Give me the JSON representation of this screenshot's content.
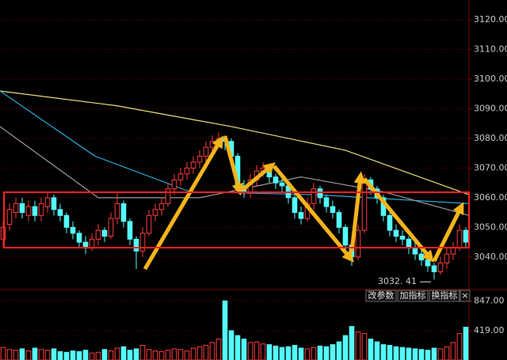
{
  "chart_data": {
    "type": "candlestick",
    "open": [
      3046,
      3051,
      3055,
      3058,
      3054,
      3057,
      3054,
      3057,
      3060,
      3056,
      3054,
      3050,
      3048,
      3045,
      3043,
      3046,
      3049,
      3047,
      3053,
      3058,
      3052,
      3046,
      3042,
      3048,
      3054,
      3056,
      3058,
      3063,
      3066,
      3068,
      3070,
      3072,
      3074,
      3077,
      3079,
      3080,
      3079,
      3074,
      3064,
      3062,
      3066,
      3069,
      3070,
      3067,
      3065,
      3064,
      3060,
      3055,
      3053,
      3058,
      3063,
      3060,
      3057,
      3055,
      3050,
      3044,
      3040,
      3049,
      3066,
      3063,
      3060,
      3054,
      3049,
      3047,
      3046,
      3043,
      3041,
      3039,
      3037,
      3035,
      3038,
      3041,
      3043,
      3049
    ],
    "close": [
      3050,
      3056,
      3058,
      3055,
      3057,
      3054,
      3058,
      3060,
      3056,
      3054,
      3050,
      3048,
      3045,
      3043,
      3046,
      3049,
      3047,
      3053,
      3058,
      3052,
      3046,
      3042,
      3048,
      3054,
      3056,
      3058,
      3063,
      3066,
      3068,
      3070,
      3072,
      3074,
      3077,
      3079,
      3080,
      3079,
      3074,
      3064,
      3062,
      3066,
      3069,
      3070,
      3067,
      3065,
      3064,
      3060,
      3055,
      3053,
      3058,
      3063,
      3060,
      3057,
      3055,
      3050,
      3044,
      3040,
      3049,
      3066,
      3063,
      3060,
      3054,
      3049,
      3047,
      3046,
      3043,
      3041,
      3039,
      3037,
      3035,
      3038,
      3041,
      3043,
      3049,
      3045
    ],
    "high": [
      3052,
      3058,
      3060,
      3060,
      3059,
      3059,
      3060,
      3062,
      3061,
      3058,
      3055,
      3052,
      3049,
      3047,
      3048,
      3051,
      3050,
      3055,
      3062,
      3059,
      3053,
      3047,
      3050,
      3056,
      3058,
      3060,
      3065,
      3068,
      3070,
      3072,
      3074,
      3076,
      3079,
      3081,
      3082,
      3081,
      3080,
      3075,
      3066,
      3068,
      3071,
      3072,
      3071,
      3068,
      3067,
      3065,
      3061,
      3057,
      3060,
      3065,
      3064,
      3061,
      3059,
      3056,
      3051,
      3045,
      3051,
      3068,
      3067,
      3064,
      3061,
      3055,
      3051,
      3049,
      3047,
      3045,
      3043,
      3040,
      3038,
      3040,
      3043,
      3045,
      3051,
      3050
    ],
    "low": [
      3043,
      3049,
      3053,
      3053,
      3052,
      3052,
      3052,
      3055,
      3054,
      3052,
      3048,
      3046,
      3043,
      3041,
      3042,
      3044,
      3045,
      3046,
      3051,
      3050,
      3044,
      3036,
      3040,
      3047,
      3052,
      3054,
      3057,
      3061,
      3064,
      3066,
      3068,
      3070,
      3072,
      3075,
      3077,
      3076,
      3072,
      3062,
      3060,
      3060,
      3064,
      3067,
      3065,
      3063,
      3062,
      3058,
      3053,
      3051,
      3052,
      3056,
      3058,
      3055,
      3053,
      3048,
      3042,
      3037,
      3039,
      3048,
      3061,
      3058,
      3052,
      3047,
      3045,
      3044,
      3041,
      3039,
      3037,
      3035,
      3032.41,
      3034,
      3036,
      3039,
      3042,
      3043
    ],
    "up_color": "#ff3c3c",
    "down_color": "#54fcfc",
    "xlim": [
      -0.5,
      73.5
    ],
    "ylim": [
      3029,
      3126.7
    ],
    "yticks": [
      {
        "value": 3040,
        "label": "3040.00"
      },
      {
        "value": 3050,
        "label": "3050.00"
      },
      {
        "value": 3060,
        "label": "3060.00"
      },
      {
        "value": 3070,
        "label": "3070.00"
      },
      {
        "value": 3080,
        "label": "3080.00"
      },
      {
        "value": 3090,
        "label": "3090.00"
      },
      {
        "value": 3100,
        "label": "3100.00"
      },
      {
        "value": 3110,
        "label": "3110.00"
      },
      {
        "value": 3120,
        "label": "3120.00"
      }
    ],
    "grid": true,
    "lines": [
      {
        "color": "#e8e07a",
        "x": [
          -0.5,
          18,
          36,
          54,
          73.5
        ],
        "values": [
          3096,
          3091,
          3084,
          3076,
          3061
        ]
      },
      {
        "color": "#2aa8d8",
        "x": [
          -0.5,
          14.5,
          29.5,
          49.5,
          73.5
        ],
        "values": [
          3096,
          3074,
          3062,
          3061,
          3058
        ]
      },
      {
        "color": "#9a9a9a",
        "x": [
          -0.5,
          15,
          31,
          47,
          60,
          73.5
        ],
        "values": [
          3084,
          3060,
          3060,
          3067,
          3062,
          3054
        ]
      }
    ],
    "low_annotation": "3032. 41",
    "volume": {
      "values": [
        180,
        150,
        140,
        160,
        130,
        170,
        150,
        140,
        160,
        120,
        110,
        130,
        120,
        140,
        100,
        110,
        150,
        130,
        170,
        190,
        140,
        160,
        210,
        150,
        130,
        120,
        140,
        160,
        150,
        130,
        170,
        190,
        210,
        250,
        300,
        847,
        420,
        350,
        300,
        250,
        260,
        230,
        220,
        200,
        180,
        190,
        210,
        170,
        160,
        180,
        200,
        190,
        220,
        260,
        350,
        480,
        400,
        380,
        300,
        260,
        220,
        210,
        190,
        180,
        170,
        160,
        150,
        140,
        170,
        160,
        190,
        250,
        380,
        470
      ],
      "ylim": [
        0,
        1009
      ],
      "yticks": [
        {
          "value": 419,
          "label": "419.00"
        },
        {
          "value": 847,
          "label": "847.00"
        }
      ]
    }
  },
  "toolbar": [
    "改参数",
    "加指标",
    "换指标",
    "×"
  ]
}
